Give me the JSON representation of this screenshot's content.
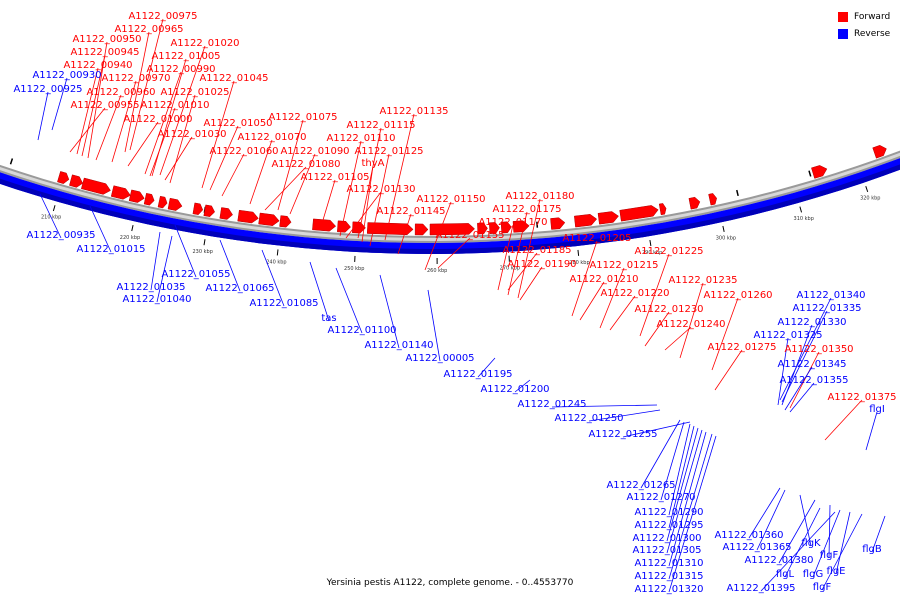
{
  "legend": {
    "forward": "Forward",
    "reverse": "Reverse",
    "forward_color": "#ff0000",
    "reverse_color": "#0000ff"
  },
  "caption": "Yersinia pestis A1122, complete genome. - 0..4553770",
  "ticks": [
    "210 kbp",
    "220 kbp",
    "230 kbp",
    "240 kbp",
    "250 kbp",
    "260 kbp",
    "270 kbp",
    "280 kbp",
    "290 kbp",
    "300 kbp",
    "310 kbp",
    "320 kbp"
  ],
  "forward_labels": [
    "A1122_00975",
    "A1122_00965",
    "A1122_00950",
    "A1122_01020",
    "A1122_00945",
    "A1122_01005",
    "A1122_00940",
    "A1122_00990",
    "A1122_00970",
    "A1122_01045",
    "A1122_00960",
    "A1122_01025",
    "A1122_00955",
    "A1122_01010",
    "A1122_01000",
    "A1122_01050",
    "A1122_01030",
    "A1122_01075",
    "A1122_01070",
    "A1122_01060",
    "A1122_01090",
    "A1122_01080",
    "A1122_01135",
    "A1122_01115",
    "A1122_01110",
    "A1122_01125",
    "thyA",
    "A1122_01105",
    "A1122_01130",
    "A1122_01150",
    "A1122_01145",
    "A1122_01180",
    "A1122_01175",
    "A1122_01170",
    "A1122_01155",
    "A1122_01205",
    "A1122_01185",
    "A1122_01225",
    "A1122_01190",
    "A1122_01215",
    "A1122_01210",
    "A1122_01235",
    "A1122_01220",
    "A1122_01260",
    "A1122_01230",
    "A1122_01240",
    "A1122_01275",
    "A1122_01350",
    "A1122_01375"
  ],
  "reverse_labels": [
    "A1122_00930",
    "A1122_00925",
    "A1122_00935",
    "A1122_01015",
    "A1122_01055",
    "A1122_01035",
    "A1122_01065",
    "A1122_01040",
    "A1122_01085",
    "tas",
    "A1122_01100",
    "A1122_01140",
    "A1122_00005",
    "A1122_01195",
    "A1122_01200",
    "A1122_01245",
    "A1122_01250",
    "A1122_01255",
    "A1122_01340",
    "A1122_01335",
    "A1122_01330",
    "A1122_01325",
    "A1122_01345",
    "A1122_01355",
    "flgI",
    "A1122_01265",
    "A1122_01270",
    "A1122_01290",
    "A1122_01295",
    "A1122_01300",
    "A1122_01305",
    "A1122_01310",
    "A1122_01315",
    "A1122_01320",
    "A1122_01360",
    "A1122_01365",
    "flgK",
    "A1122_01380",
    "flgF",
    "flgL",
    "flgG",
    "flgE",
    "A1122_01395",
    "flgF",
    "flgB"
  ]
}
